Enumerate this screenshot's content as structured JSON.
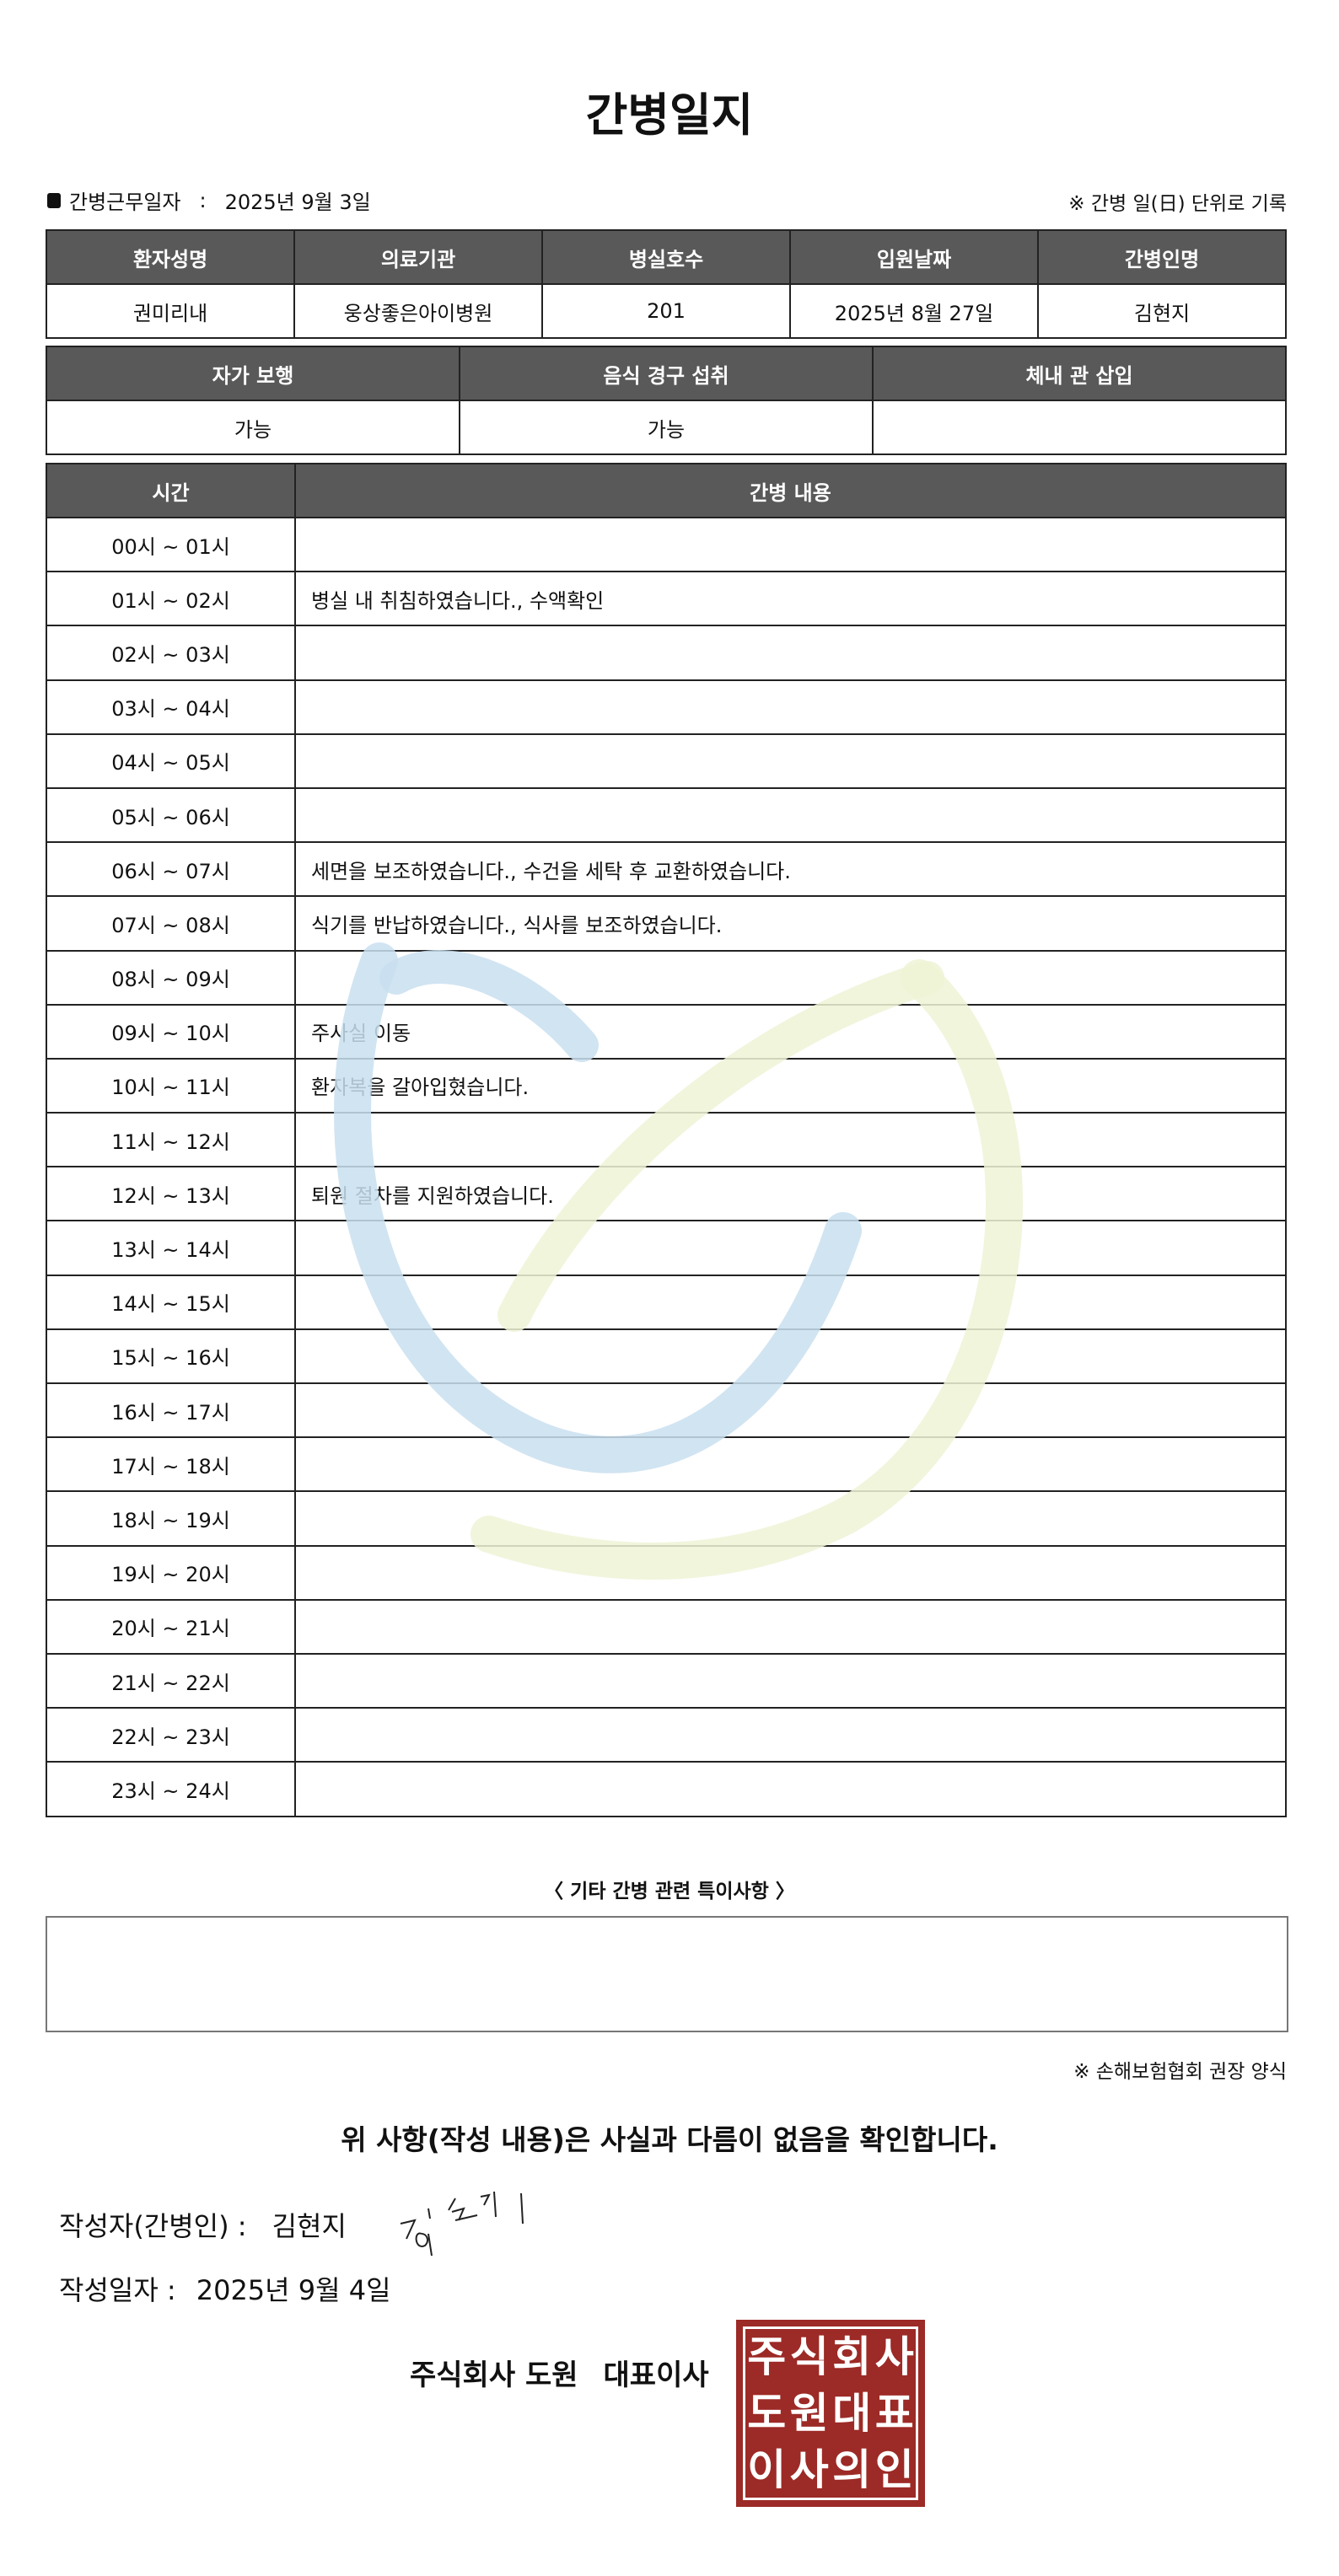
{
  "title": "간병일지",
  "work_date": {
    "label": "간병근무일자",
    "separator": ":",
    "value": "2025년 9월 3일"
  },
  "record_note": "※ 간병 일(日) 단위로 기록",
  "info_table": {
    "headers": [
      "환자성명",
      "의료기관",
      "병실호수",
      "입원날짜",
      "간병인명"
    ],
    "values": [
      "권미리내",
      "웅상좋은아이병원",
      "201",
      "2025년 8월 27일",
      "김현지"
    ]
  },
  "status_table": {
    "headers": [
      "자가 보행",
      "음식 경구 섭취",
      "체내 관 삽입"
    ],
    "values": [
      "가능",
      "가능",
      ""
    ]
  },
  "log_table": {
    "headers": [
      "시간",
      "간병 내용"
    ],
    "rows": [
      {
        "time": "00시 ~ 01시",
        "content": ""
      },
      {
        "time": "01시 ~ 02시",
        "content": "병실 내 취침하였습니다., 수액확인"
      },
      {
        "time": "02시 ~ 03시",
        "content": ""
      },
      {
        "time": "03시 ~ 04시",
        "content": ""
      },
      {
        "time": "04시 ~ 05시",
        "content": ""
      },
      {
        "time": "05시 ~ 06시",
        "content": ""
      },
      {
        "time": "06시 ~ 07시",
        "content": "세면을 보조하였습니다., 수건을 세탁 후 교환하였습니다."
      },
      {
        "time": "07시 ~ 08시",
        "content": "식기를 반납하였습니다., 식사를 보조하였습니다."
      },
      {
        "time": "08시 ~ 09시",
        "content": ""
      },
      {
        "time": "09시 ~ 10시",
        "content": "주사실 이동"
      },
      {
        "time": "10시 ~ 11시",
        "content": "환자복을 갈아입혔습니다."
      },
      {
        "time": "11시 ~ 12시",
        "content": ""
      },
      {
        "time": "12시 ~ 13시",
        "content": "퇴원 절차를 지원하였습니다."
      },
      {
        "time": "13시 ~ 14시",
        "content": ""
      },
      {
        "time": "14시 ~ 15시",
        "content": ""
      },
      {
        "time": "15시 ~ 16시",
        "content": ""
      },
      {
        "time": "16시 ~ 17시",
        "content": ""
      },
      {
        "time": "17시 ~ 18시",
        "content": ""
      },
      {
        "time": "18시 ~ 19시",
        "content": ""
      },
      {
        "time": "19시 ~ 20시",
        "content": ""
      },
      {
        "time": "20시 ~ 21시",
        "content": ""
      },
      {
        "time": "21시 ~ 22시",
        "content": ""
      },
      {
        "time": "22시 ~ 23시",
        "content": ""
      },
      {
        "time": "23시 ~ 24시",
        "content": ""
      }
    ]
  },
  "special_notes": {
    "label": "〈 기타 간병 관련 특이사항 〉",
    "value": ""
  },
  "association_note": "※ 손해보험협회 권장 양식",
  "confirmation": "위 사항(작성 내용)은 사실과 다름이 없음을 확인합니다.",
  "writer": {
    "label": "작성자(간병인) :",
    "value": "김현지"
  },
  "written_date": {
    "label": "작성일자 :",
    "value": "2025년 9월 4일"
  },
  "company": {
    "name": "주식회사 도원",
    "title": "대표이사"
  },
  "stamp": {
    "text": "주식회사도원대표이사의인",
    "color": "#9c2a26"
  },
  "watermark_colors": {
    "blue": "#c9dff0",
    "green": "#eef3d6"
  }
}
